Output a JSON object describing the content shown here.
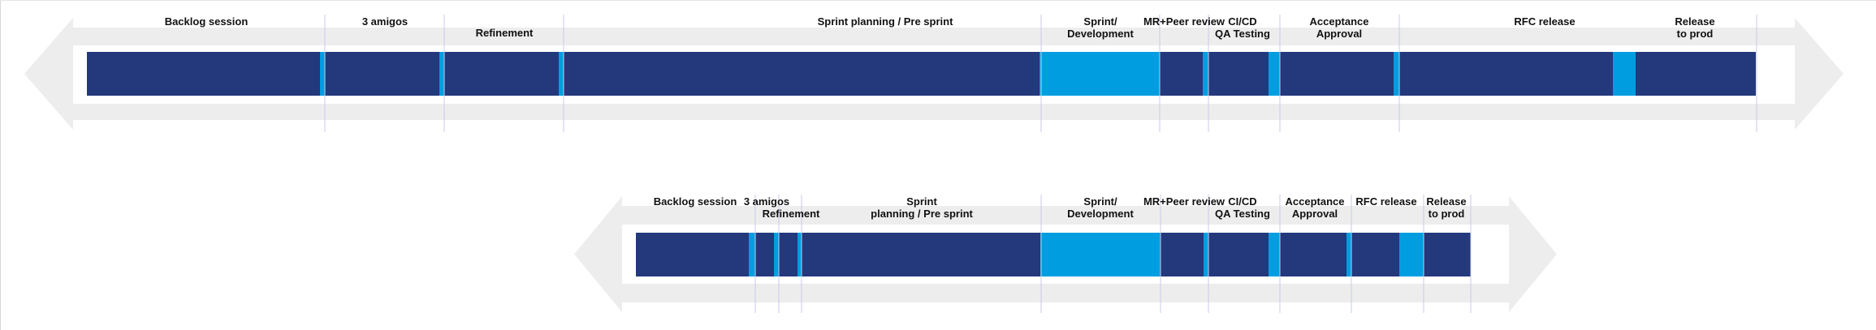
{
  "colors": {
    "arrow_fill": "#ededed",
    "panel_fill": "#ffffff",
    "bar_dark": "#24387c",
    "bar_accent": "#009ee0",
    "divider_line": "#c9cbe8"
  },
  "diagrams": [
    {
      "id": "long",
      "labels": [
        "Backlog session",
        "3 amigos",
        "Refinement",
        "Sprint planning / Pre sprint",
        "Sprint/\nDevelopment",
        "MR+Peer review",
        "CI/CD\nQA Testing",
        "Acceptance\nApproval",
        "RFC release",
        "Release\nto prod"
      ]
    },
    {
      "id": "short",
      "labels": [
        "Backlog session",
        "3 amigos",
        "Refinement",
        "Sprint\nplanning / Pre sprint",
        "Sprint/\nDevelopment",
        "MR+Peer review",
        "CI/CD\nQA Testing",
        "Acceptance\nApproval",
        "RFC release",
        "Release\nto prod"
      ]
    }
  ]
}
